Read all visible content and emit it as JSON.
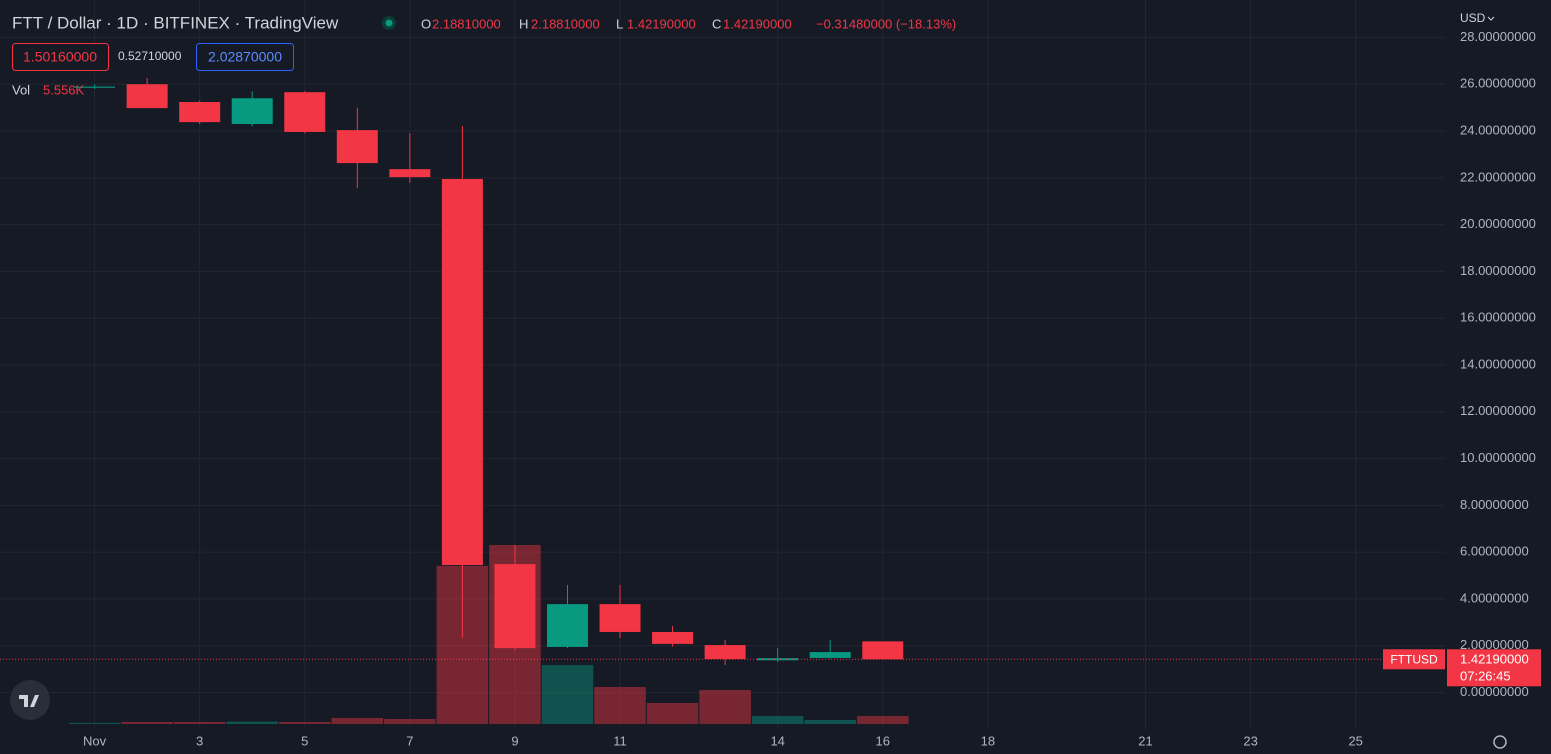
{
  "chart_data": {
    "type": "candlestick",
    "title": "FTT / Dollar · 1D · BITFINEX · TradingView",
    "legend": {
      "o_label": "O",
      "o": "2.18810000",
      "h_label": "H",
      "h": "2.18810000",
      "l_label": "L",
      "l": "1.42190000",
      "c_label": "C",
      "c": "1.42190000",
      "change": "−0.31480000 (−18.13%)",
      "bid": "1.50160000",
      "spread": "0.52710000",
      "ask": "2.02870000"
    },
    "currency": "USD",
    "symbol": "FTTUSD",
    "last_price": {
      "value": 1.4219,
      "label": "1.42190000"
    },
    "countdown": "07:26:45",
    "x": [
      1,
      2,
      3,
      4,
      5,
      6,
      7,
      8,
      9,
      10,
      11,
      12,
      13,
      14,
      15,
      16
    ],
    "open": [
      25.85,
      26.0,
      25.24,
      24.3,
      25.66,
      24.04,
      22.37,
      21.95,
      5.49,
      1.95,
      3.78,
      2.59,
      2.03,
      1.38,
      1.48,
      2.1881
    ],
    "high": [
      26.0,
      26.26,
      25.3,
      25.7,
      25.7,
      25.0,
      23.91,
      24.21,
      6.3,
      4.6,
      4.6,
      2.84,
      2.25,
      1.9,
      2.25,
      2.1881
    ],
    "low": [
      25.8,
      24.98,
      24.3,
      24.2,
      23.9,
      21.56,
      21.78,
      2.33,
      1.8,
      1.9,
      2.33,
      1.96,
      1.18,
      1.3,
      1.45,
      1.4219
    ],
    "close": [
      25.9,
      24.98,
      24.38,
      25.4,
      23.96,
      22.63,
      22.03,
      5.45,
      1.9,
      3.78,
      2.59,
      2.08,
      1.43,
      1.47,
      1.73,
      1.4219
    ],
    "volume": {
      "name": "Vol",
      "values": [
        800,
        1400,
        1400,
        1700,
        1400,
        4200,
        3500,
        109700,
        124200,
        40900,
        25700,
        14600,
        23600,
        5600,
        2800,
        5556
      ],
      "last_label": "5.556K"
    },
    "up_color": "#089981",
    "down_color": "#f23645",
    "xlim": [
      -0.8,
      26.7
    ],
    "xticks": [
      {
        "value": 1,
        "label": "Nov"
      },
      3,
      5,
      7,
      9,
      11,
      14,
      16,
      18,
      21,
      23,
      25
    ],
    "ylim": [
      -1.6,
      29.6
    ],
    "yticks": [
      {
        "value": 0,
        "label": "0.00000000"
      },
      {
        "value": 2,
        "label": "2.00000000"
      },
      {
        "value": 4,
        "label": "4.00000000"
      },
      {
        "value": 6,
        "label": "6.00000000"
      },
      {
        "value": 8,
        "label": "8.00000000"
      },
      {
        "value": 10,
        "label": "10.00000000"
      },
      {
        "value": 12,
        "label": "12.00000000"
      },
      {
        "value": 14,
        "label": "14.00000000"
      },
      {
        "value": 16,
        "label": "16.00000000"
      },
      {
        "value": 18,
        "label": "18.00000000"
      },
      {
        "value": 20,
        "label": "20.00000000"
      },
      {
        "value": 22,
        "label": "22.00000000"
      },
      {
        "value": 24,
        "label": "24.00000000"
      },
      {
        "value": 26,
        "label": "26.00000000"
      },
      {
        "value": 28,
        "label": "28.00000000"
      }
    ],
    "grid": true
  }
}
